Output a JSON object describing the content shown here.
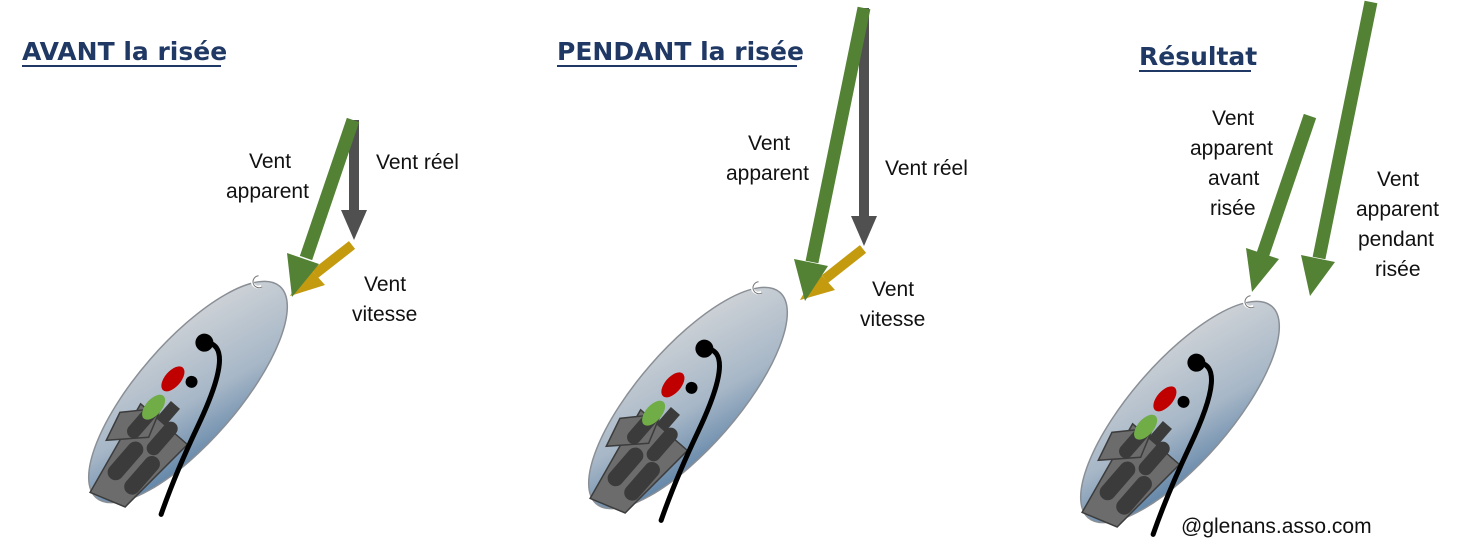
{
  "panels": [
    {
      "title": "AVANT la risée",
      "labels": {
        "apparent": [
          "Vent",
          "apparent"
        ],
        "reel": "Vent réel",
        "vitesse": [
          "Vent",
          "vitesse"
        ]
      }
    },
    {
      "title": "PENDANT la risée",
      "labels": {
        "apparent": [
          "Vent",
          "apparent"
        ],
        "reel": "Vent réel",
        "vitesse": [
          "Vent",
          "vitesse"
        ]
      }
    },
    {
      "title": "Résultat",
      "labels": {
        "apparent_avant": [
          "Vent",
          "apparent",
          "avant",
          "risée"
        ],
        "apparent_pendant": [
          "Vent",
          "apparent",
          "pendant",
          "risée"
        ]
      }
    }
  ],
  "credit": "@glenans.asso.com",
  "colors": {
    "title": "#1f3864",
    "apparent_wind": "#548235",
    "true_wind": "#505050",
    "speed_wind": "#c49a0f",
    "hull_light": "#d4d6d9",
    "hull_dark": "#44709b",
    "mainsail": "#000000",
    "helmsman": "#c00000",
    "crew": "#70ad47"
  },
  "icons": [
    "dinghy-top-view",
    "wind-arrow"
  ]
}
